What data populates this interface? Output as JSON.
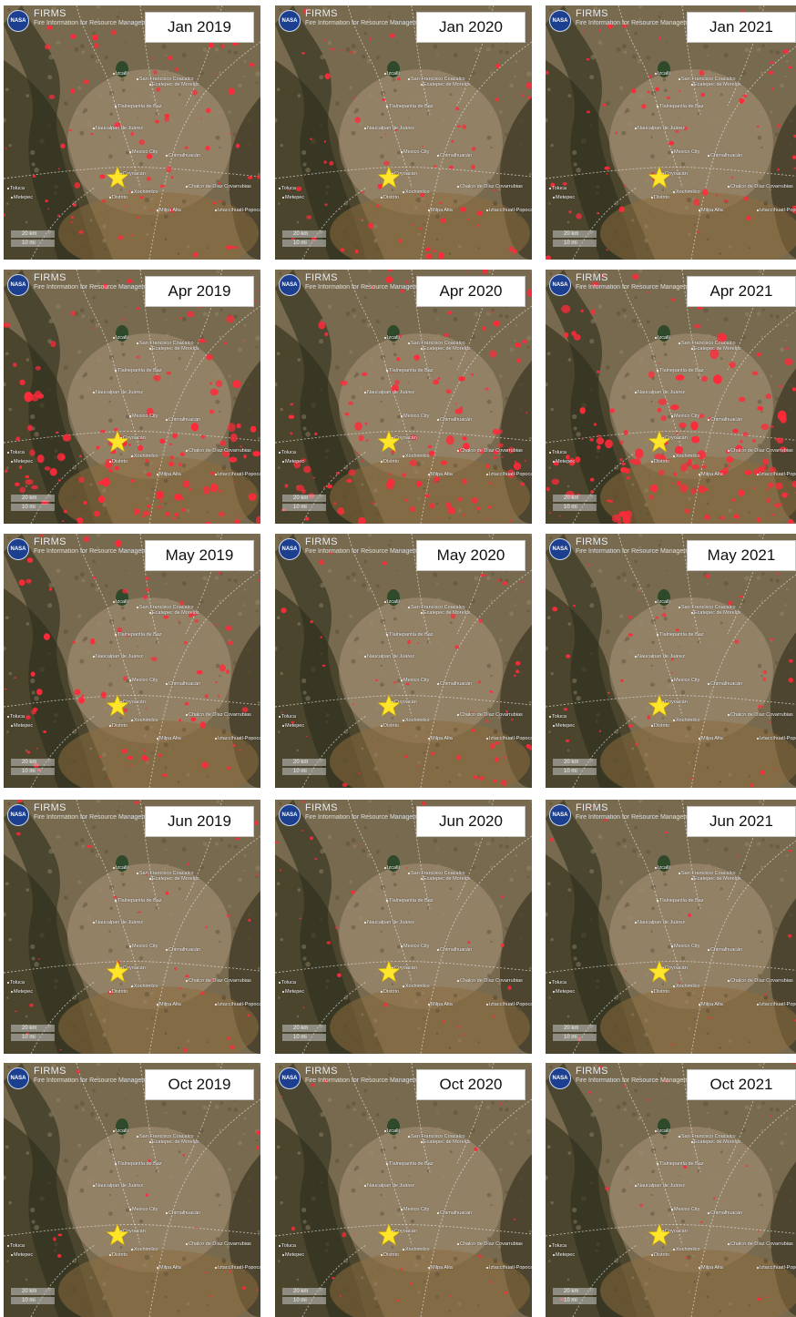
{
  "brand": {
    "logo": "NASA",
    "title": "FIRMS",
    "subtitle": "Fire Information for Resource Managemen"
  },
  "scale": {
    "line1": "20 km",
    "line2": "10 mi"
  },
  "places": [
    "Izcalli",
    "San Francisco Coacalco",
    "Ecatepec de Morelos",
    "Tlalnepantla de Baz",
    "Naucalpan de Juárez",
    "Mexico City",
    "Chimalhuacán",
    "Coyoacán",
    "Toluca",
    "Metepec",
    "Distrito",
    "Xochimilco",
    "Chalco de Díaz Covarrubias",
    "Milpa Alta",
    "Iztaccíhuatl-Popocatépetl"
  ],
  "panels": [
    {
      "label": "Jan 2019",
      "fire_level": 0.45
    },
    {
      "label": "Jan 2020",
      "fire_level": 0.4
    },
    {
      "label": "Jan 2021",
      "fire_level": 0.35
    },
    {
      "label": "Apr 2019",
      "fire_level": 0.85
    },
    {
      "label": "Apr 2020",
      "fire_level": 0.75
    },
    {
      "label": "Apr 2021",
      "fire_level": 0.95
    },
    {
      "label": "May 2019",
      "fire_level": 0.45
    },
    {
      "label": "May 2020",
      "fire_level": 0.3
    },
    {
      "label": "May 2021",
      "fire_level": 0.2
    },
    {
      "label": "Jun 2019",
      "fire_level": 0.15
    },
    {
      "label": "Jun 2020",
      "fire_level": 0.1
    },
    {
      "label": "Jun 2021",
      "fire_level": 0.05
    },
    {
      "label": "Oct 2019",
      "fire_level": 0.05
    },
    {
      "label": "Oct 2020",
      "fire_level": 0.08
    },
    {
      "label": "Oct 2021",
      "fire_level": 0.06
    }
  ],
  "colors": {
    "fire": "#ff2a3a",
    "star": "#ffe52a",
    "terrain": "#7a6a4c"
  },
  "icons": {
    "logo": "nasa-logo-icon",
    "marker": "star-marker-icon"
  }
}
